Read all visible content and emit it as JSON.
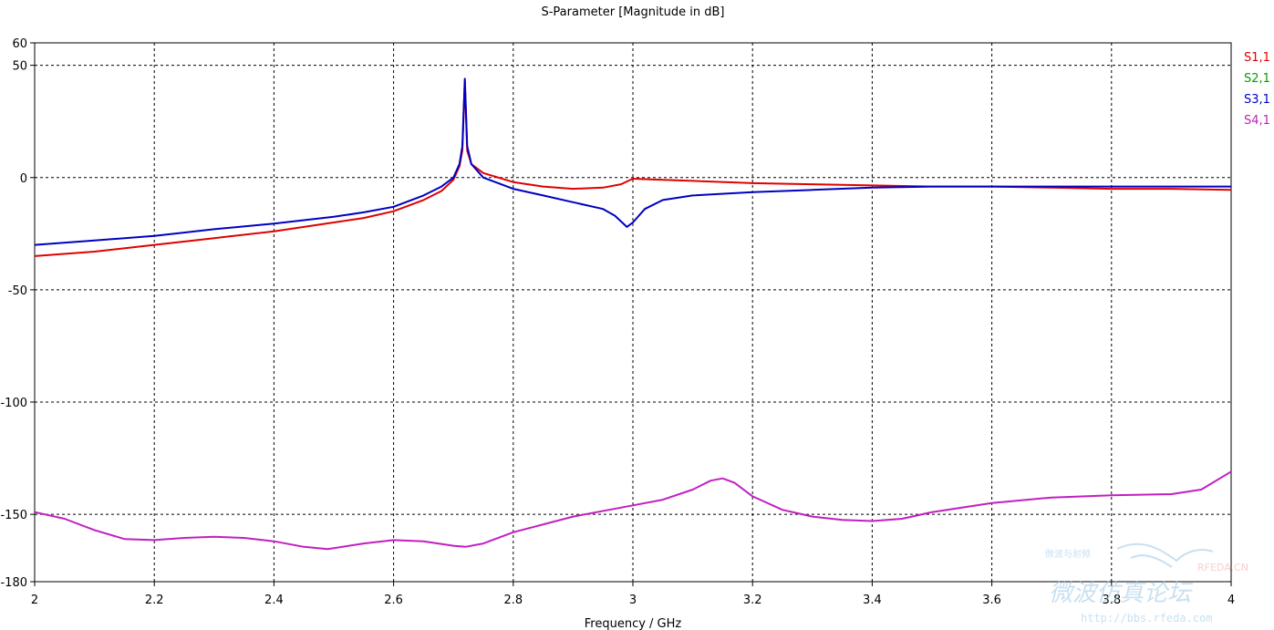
{
  "chart_data": {
    "type": "line",
    "title": "S-Parameter [Magnitude in dB]",
    "xlabel": "Frequency / GHz",
    "ylabel": "",
    "xlim": [
      2,
      4
    ],
    "ylim": [
      -180,
      60
    ],
    "x_ticks": [
      2,
      2.2,
      2.4,
      2.6,
      2.8,
      3,
      3.2,
      3.4,
      3.6,
      3.8,
      4
    ],
    "x_tick_labels": [
      "2",
      "2.2",
      "2.4",
      "2.6",
      "2.8",
      "3",
      "3.2",
      "3.4",
      "3.6",
      "3.8",
      "4"
    ],
    "y_ticks": [
      60,
      50,
      0,
      -50,
      -100,
      -150,
      -180
    ],
    "y_tick_labels": [
      "60",
      "50",
      "0",
      "-50",
      "-100",
      "-150",
      "-180"
    ],
    "grid": true,
    "legend_position": "top-right",
    "series": [
      {
        "name": "S1,1",
        "color": "#e00000",
        "points": [
          [
            2.0,
            -35
          ],
          [
            2.1,
            -33
          ],
          [
            2.2,
            -30
          ],
          [
            2.3,
            -27
          ],
          [
            2.4,
            -24
          ],
          [
            2.5,
            -20
          ],
          [
            2.55,
            -18
          ],
          [
            2.6,
            -15
          ],
          [
            2.65,
            -10
          ],
          [
            2.68,
            -6
          ],
          [
            2.7,
            -1
          ],
          [
            2.71,
            5
          ],
          [
            2.715,
            12
          ],
          [
            2.719,
            43
          ],
          [
            2.723,
            12
          ],
          [
            2.73,
            6
          ],
          [
            2.75,
            2
          ],
          [
            2.8,
            -2
          ],
          [
            2.85,
            -4
          ],
          [
            2.9,
            -5
          ],
          [
            2.95,
            -4.5
          ],
          [
            2.98,
            -3
          ],
          [
            3.0,
            -0.5
          ],
          [
            3.05,
            -1
          ],
          [
            3.1,
            -1.5
          ],
          [
            3.2,
            -2.5
          ],
          [
            3.3,
            -3
          ],
          [
            3.4,
            -3.5
          ],
          [
            3.5,
            -4
          ],
          [
            3.6,
            -4
          ],
          [
            3.7,
            -4.5
          ],
          [
            3.8,
            -5
          ],
          [
            3.9,
            -5
          ],
          [
            4.0,
            -5.5
          ]
        ]
      },
      {
        "name": "S2,1",
        "color": "#00a000",
        "points": []
      },
      {
        "name": "S3,1",
        "color": "#0000c0",
        "points": [
          [
            2.0,
            -30
          ],
          [
            2.1,
            -28
          ],
          [
            2.2,
            -26
          ],
          [
            2.3,
            -23
          ],
          [
            2.4,
            -20.5
          ],
          [
            2.5,
            -17.5
          ],
          [
            2.55,
            -15.5
          ],
          [
            2.6,
            -13
          ],
          [
            2.65,
            -8
          ],
          [
            2.68,
            -4
          ],
          [
            2.7,
            0
          ],
          [
            2.71,
            6
          ],
          [
            2.715,
            14
          ],
          [
            2.719,
            44
          ],
          [
            2.723,
            14
          ],
          [
            2.73,
            6
          ],
          [
            2.75,
            0
          ],
          [
            2.8,
            -5
          ],
          [
            2.85,
            -8
          ],
          [
            2.9,
            -11
          ],
          [
            2.95,
            -14
          ],
          [
            2.97,
            -17
          ],
          [
            2.99,
            -22
          ],
          [
            3.0,
            -20
          ],
          [
            3.02,
            -14
          ],
          [
            3.05,
            -10
          ],
          [
            3.1,
            -8
          ],
          [
            3.2,
            -6.5
          ],
          [
            3.3,
            -5.5
          ],
          [
            3.4,
            -4.5
          ],
          [
            3.5,
            -4
          ],
          [
            3.6,
            -4
          ],
          [
            3.7,
            -4
          ],
          [
            3.8,
            -4
          ],
          [
            3.9,
            -4
          ],
          [
            4.0,
            -4
          ]
        ]
      },
      {
        "name": "S4,1",
        "color": "#c020c0",
        "points": [
          [
            2.0,
            -149
          ],
          [
            2.05,
            -152
          ],
          [
            2.1,
            -157
          ],
          [
            2.15,
            -161
          ],
          [
            2.2,
            -161.5
          ],
          [
            2.25,
            -160.5
          ],
          [
            2.3,
            -160
          ],
          [
            2.35,
            -160.5
          ],
          [
            2.4,
            -162
          ],
          [
            2.45,
            -164.5
          ],
          [
            2.49,
            -165.5
          ],
          [
            2.55,
            -163
          ],
          [
            2.6,
            -161.5
          ],
          [
            2.65,
            -162
          ],
          [
            2.7,
            -164
          ],
          [
            2.72,
            -164.5
          ],
          [
            2.75,
            -163
          ],
          [
            2.8,
            -158
          ],
          [
            2.9,
            -151
          ],
          [
            3.0,
            -146
          ],
          [
            3.05,
            -143.5
          ],
          [
            3.1,
            -139
          ],
          [
            3.13,
            -135
          ],
          [
            3.15,
            -134
          ],
          [
            3.17,
            -136
          ],
          [
            3.2,
            -142
          ],
          [
            3.25,
            -148
          ],
          [
            3.3,
            -151
          ],
          [
            3.35,
            -152.5
          ],
          [
            3.4,
            -153
          ],
          [
            3.45,
            -152
          ],
          [
            3.5,
            -149
          ],
          [
            3.6,
            -145
          ],
          [
            3.7,
            -142.5
          ],
          [
            3.8,
            -141.5
          ],
          [
            3.9,
            -141
          ],
          [
            3.95,
            -139
          ],
          [
            4.0,
            -131
          ]
        ]
      }
    ]
  },
  "watermark": {
    "brand": "RFEDA.CN",
    "url": "http://bbs.rfeda.com",
    "text_cn": "微波仿真论坛",
    "text_cn_small": "微波与射频"
  }
}
